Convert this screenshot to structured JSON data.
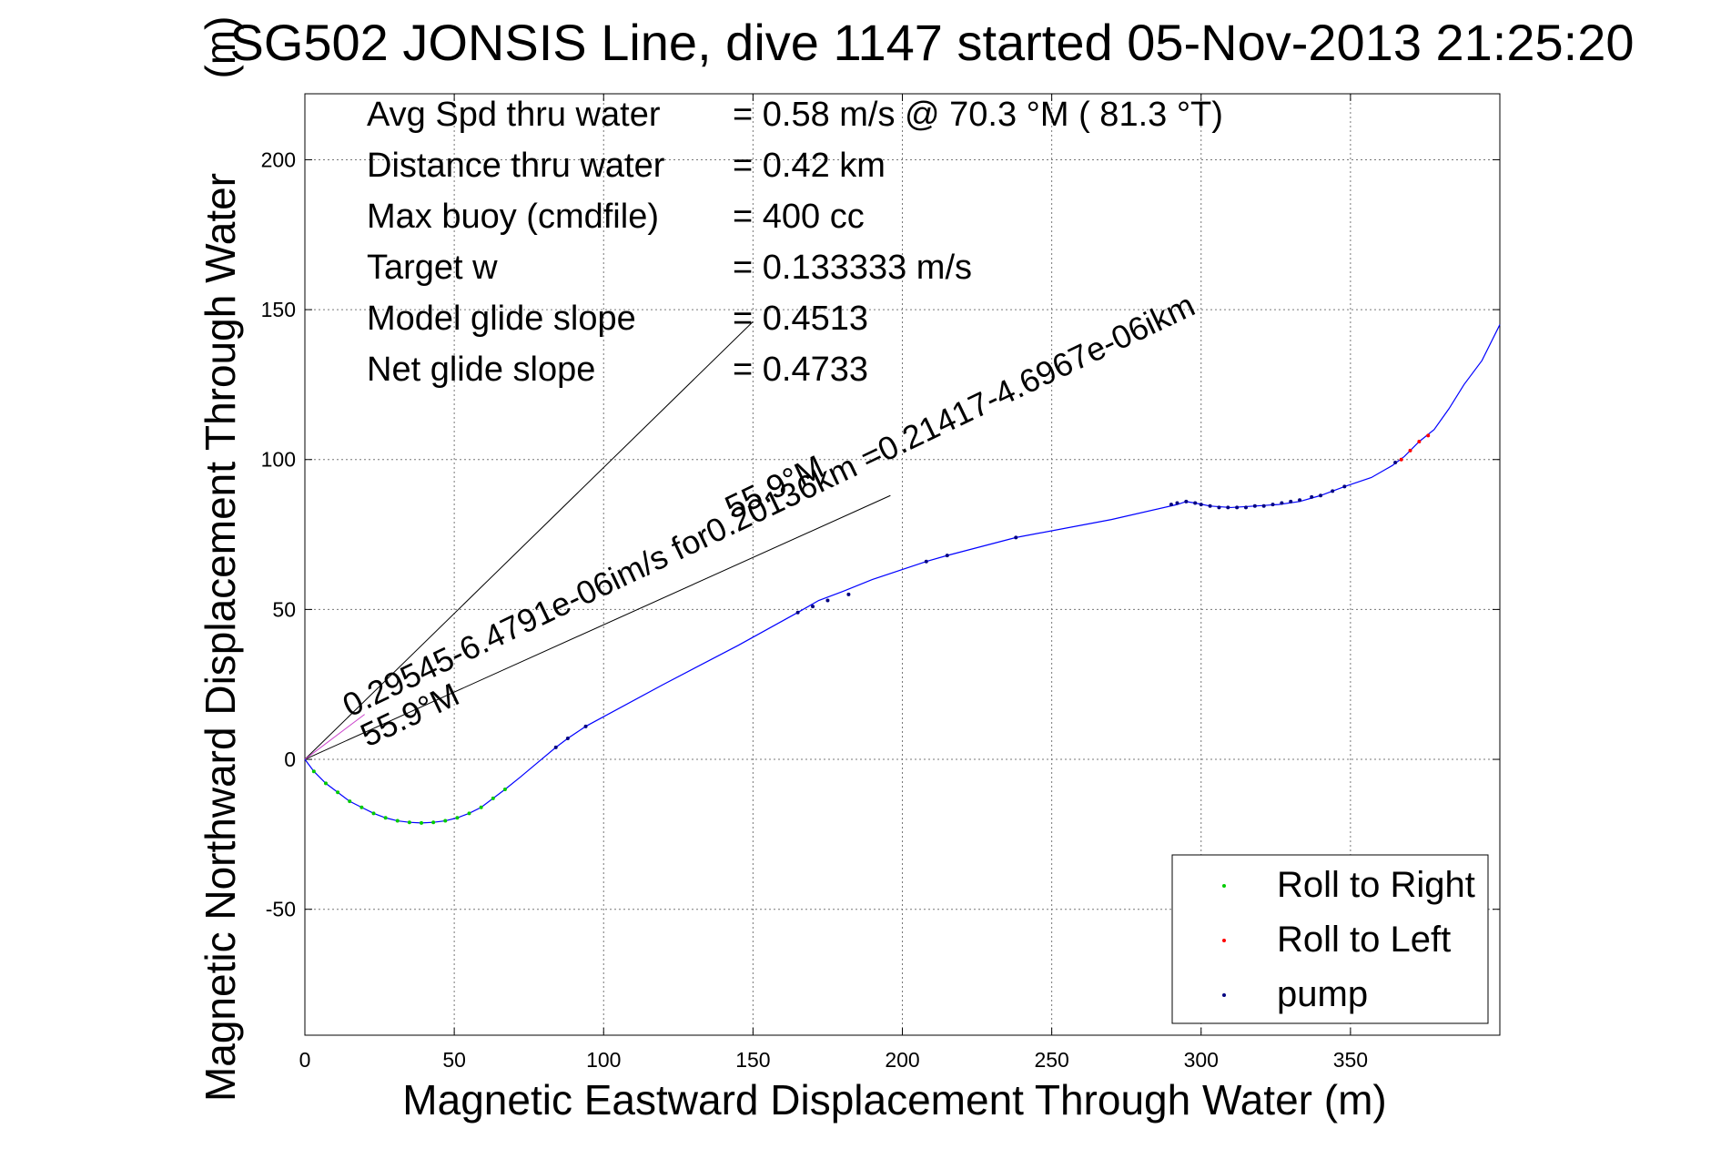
{
  "chart_data": {
    "type": "scatter",
    "title": "SG502 JONSIS Line, dive 1147 started 05-Nov-2013 21:25:20",
    "title_overlay": "(m)",
    "xlabel": "Magnetic Eastward Displacement Through Water (m)",
    "ylabel": "Magnetic Northward Displacement Through Water",
    "xlim": [
      0,
      400
    ],
    "ylim": [
      -92,
      222
    ],
    "xticks": [
      0,
      50,
      100,
      150,
      200,
      250,
      300,
      350
    ],
    "yticks": [
      -50,
      0,
      50,
      100,
      150,
      200
    ],
    "grid": true,
    "legend_position": "bottom-right",
    "stats": [
      {
        "label": "Avg Spd thru water",
        "value": "=  0.58 m/s @  70.3 °M ( 81.3 °T)"
      },
      {
        "label": "Distance thru water",
        "value": "=  0.42 km"
      },
      {
        "label": "Max buoy (cmdfile)",
        "value": "= 400 cc"
      },
      {
        "label": "Target w",
        "value": "= 0.133333 m/s"
      },
      {
        "label": "Model glide slope",
        "value": "= 0.4513"
      },
      {
        "label": "Net glide slope",
        "value": "= 0.4733"
      }
    ],
    "annotations": [
      {
        "text": "0.29545-6.4791e-06im/s for0.20136km =0.21417-4.6967e-06ikm",
        "x": 15,
        "y": 14,
        "angle_deg": 25.5
      },
      {
        "text": "55.9°M",
        "x": 21,
        "y": 4,
        "angle_deg": 25.5
      },
      {
        "text": "55.9°M",
        "x": 143,
        "y": 80,
        "angle_deg": 25.5
      }
    ],
    "reference_lines": [
      {
        "name": "model glide slope line",
        "color": "#000000",
        "points": [
          [
            0,
            0
          ],
          [
            150,
            146
          ]
        ]
      },
      {
        "name": "net glide slope line",
        "color": "#000000",
        "points": [
          [
            0,
            0
          ],
          [
            196,
            88
          ]
        ]
      },
      {
        "name": "current vector",
        "color": "#cc44cc",
        "points": [
          [
            0,
            0
          ],
          [
            20,
            15
          ]
        ]
      }
    ],
    "track": {
      "name": "track",
      "color": "#0000ff",
      "points": [
        [
          0,
          0
        ],
        [
          3,
          -4
        ],
        [
          7,
          -8
        ],
        [
          11,
          -11
        ],
        [
          15,
          -14
        ],
        [
          19,
          -16
        ],
        [
          23,
          -18
        ],
        [
          27,
          -19.5
        ],
        [
          31,
          -20.5
        ],
        [
          35,
          -21
        ],
        [
          39,
          -21.2
        ],
        [
          43,
          -21
        ],
        [
          47,
          -20.5
        ],
        [
          51,
          -19.5
        ],
        [
          55,
          -18
        ],
        [
          59,
          -16
        ],
        [
          63,
          -13
        ],
        [
          67,
          -10
        ],
        [
          72,
          -6
        ],
        [
          78,
          -1
        ],
        [
          84,
          4
        ],
        [
          88,
          7
        ],
        [
          94,
          11
        ],
        [
          120,
          25
        ],
        [
          145,
          38
        ],
        [
          165,
          49
        ],
        [
          172,
          53
        ],
        [
          180,
          56
        ],
        [
          190,
          60
        ],
        [
          208,
          66
        ],
        [
          215,
          68
        ],
        [
          238,
          74
        ],
        [
          270,
          80
        ],
        [
          292,
          85
        ],
        [
          295,
          86
        ],
        [
          298,
          85.5
        ],
        [
          303,
          84.5
        ],
        [
          310,
          84
        ],
        [
          318,
          84.5
        ],
        [
          326,
          85
        ],
        [
          333,
          86
        ],
        [
          340,
          88
        ],
        [
          348,
          91
        ],
        [
          357,
          94
        ],
        [
          364,
          98
        ],
        [
          368,
          101
        ],
        [
          373,
          106
        ],
        [
          378,
          110
        ],
        [
          383,
          117
        ],
        [
          388,
          125
        ],
        [
          394,
          133
        ],
        [
          400,
          145
        ]
      ]
    },
    "series": [
      {
        "name": "Roll to Right",
        "color": "#00cc00",
        "marker": "dot",
        "x": [
          3,
          7,
          11,
          15,
          19,
          23,
          27,
          31,
          35,
          39,
          43,
          47,
          51,
          55,
          59,
          63,
          67
        ],
        "y": [
          -4,
          -8,
          -11,
          -14,
          -16,
          -18,
          -19.5,
          -20.5,
          -21,
          -21.2,
          -21,
          -20.5,
          -19.5,
          -18,
          -16,
          -13,
          -10
        ]
      },
      {
        "name": "Roll to Left",
        "color": "#ff0000",
        "marker": "dot",
        "x": [
          367,
          370,
          373,
          376
        ],
        "y": [
          100,
          103,
          106,
          108
        ]
      },
      {
        "name": "pump",
        "color": "#000080",
        "marker": "dot",
        "x": [
          84,
          88,
          94,
          165,
          170,
          175,
          182,
          208,
          215,
          238,
          290,
          292,
          295,
          298,
          300,
          303,
          306,
          309,
          312,
          315,
          318,
          321,
          324,
          327,
          330,
          333,
          337,
          340,
          344,
          348,
          365
        ],
        "y": [
          4,
          7,
          11,
          49,
          51,
          53,
          55,
          66,
          68,
          74,
          85,
          85.5,
          86,
          85.5,
          85,
          84.5,
          84,
          84,
          84,
          84,
          84.5,
          84.5,
          85,
          85.5,
          86,
          86.5,
          87.5,
          88,
          89.5,
          91,
          99
        ]
      }
    ]
  }
}
